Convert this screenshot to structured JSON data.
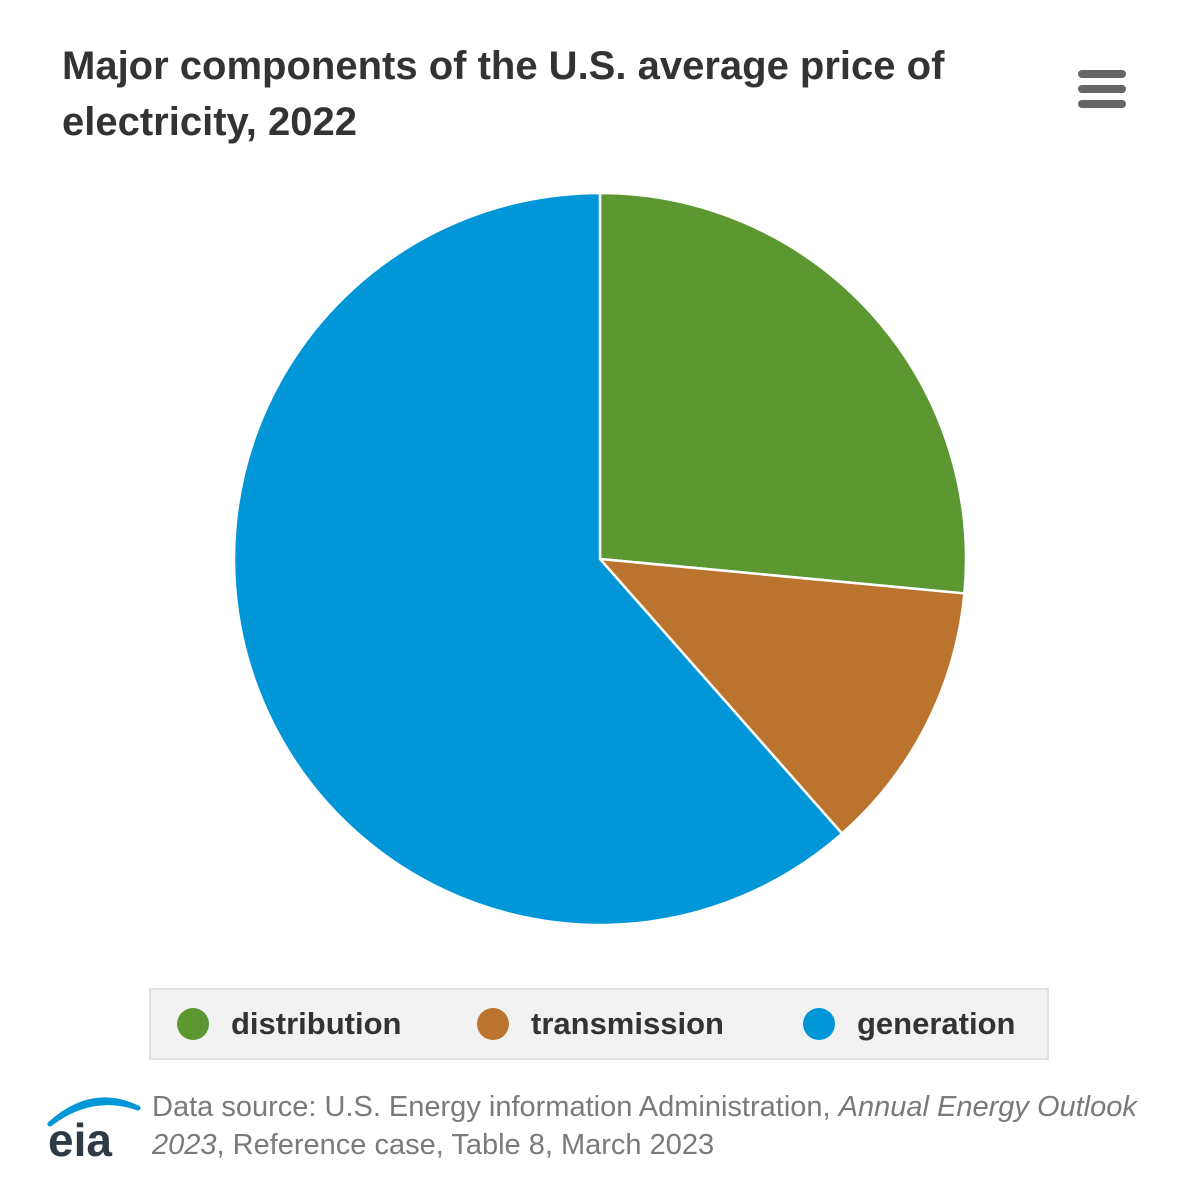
{
  "title": "Major components of the U.S. average price of electricity, 2022",
  "chart_data": {
    "type": "pie",
    "title": "Major components of the U.S. average price of electricity, 2022",
    "series": [
      {
        "name": "distribution",
        "value": 26.5,
        "color": "#5d9732"
      },
      {
        "name": "transmission",
        "value": 12.0,
        "color": "#bb742d"
      },
      {
        "name": "generation",
        "value": 61.5,
        "color": "#0096d7"
      }
    ],
    "units": "percent of total price (estimated)",
    "legend_position": "bottom"
  },
  "legend": {
    "items": [
      {
        "label": "distribution",
        "color": "#5d9732"
      },
      {
        "label": "transmission",
        "color": "#bb742d"
      },
      {
        "label": "generation",
        "color": "#0096d7"
      }
    ]
  },
  "menu": {
    "icon": "hamburger-menu-icon"
  },
  "source": {
    "prefix": "Data source: U.S. Energy information Administration, ",
    "italic": "Annual Energy Outlook 2023",
    "suffix": ", Reference case, Table 8, March 2023"
  },
  "logo": {
    "text": "eia"
  }
}
